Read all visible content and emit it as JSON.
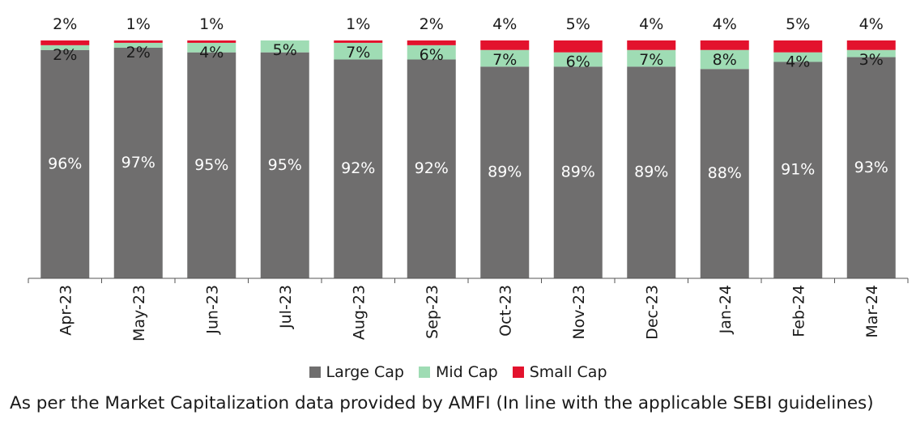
{
  "chart_data": {
    "type": "bar",
    "stacked": true,
    "categories": [
      "Apr-23",
      "May-23",
      "Jun-23",
      "Jul-23",
      "Aug-23",
      "Sep-23",
      "Oct-23",
      "Nov-23",
      "Dec-23",
      "Jan-24",
      "Feb-24",
      "Mar-24"
    ],
    "series": [
      {
        "name": "Large Cap",
        "color": "#6f6e6e",
        "values": [
          96,
          97,
          95,
          95,
          92,
          92,
          89,
          89,
          89,
          88,
          91,
          93
        ],
        "labels": [
          "96%",
          "97%",
          "95%",
          "95%",
          "92%",
          "92%",
          "89%",
          "89%",
          "89%",
          "88%",
          "91%",
          "93%"
        ]
      },
      {
        "name": "Mid Cap",
        "color": "#9fdcb4",
        "values": [
          2,
          2,
          4,
          5,
          7,
          6,
          7,
          6,
          7,
          8,
          4,
          3
        ],
        "labels": [
          "2%",
          "2%",
          "4%",
          "5%",
          "7%",
          "6%",
          "7%",
          "6%",
          "7%",
          "8%",
          "4%",
          "3%"
        ]
      },
      {
        "name": "Small Cap",
        "color": "#e3122d",
        "values": [
          2,
          1,
          1,
          0,
          1,
          2,
          4,
          5,
          4,
          4,
          5,
          4
        ],
        "labels": [
          "2%",
          "1%",
          "1%",
          "",
          "1%",
          "2%",
          "4%",
          "5%",
          "4%",
          "4%",
          "5%",
          "4%"
        ]
      }
    ],
    "ylim": [
      0,
      100
    ],
    "legend": "bottom-center",
    "grid": false
  },
  "legend": {
    "large_cap": "Large Cap",
    "mid_cap": "Mid Cap",
    "small_cap": "Small Cap"
  },
  "footnote": "As per the Market Capitalization data provided by AMFI (In line with the applicable SEBI guidelines)"
}
